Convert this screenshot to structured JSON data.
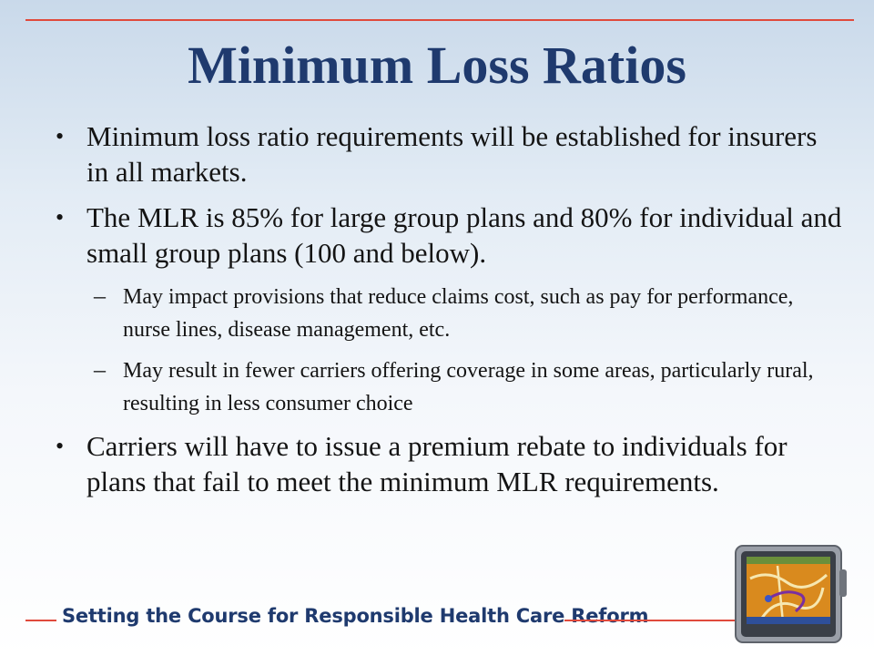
{
  "slide": {
    "title": "Minimum Loss Ratios",
    "bullets": [
      {
        "text": "Minimum loss ratio requirements will be established for insurers in all markets."
      },
      {
        "text": "The MLR is 85% for large group plans and 80% for individual and small group plans (100 and below).",
        "sub": [
          "May impact provisions that reduce claims cost, such as pay for performance, nurse lines, disease management, etc.",
          "May result in fewer carriers offering coverage in some areas, particularly rural, resulting in less consumer choice"
        ]
      },
      {
        "text": "Carriers will have to issue a premium rebate to individuals for plans that fail to meet the minimum MLR requirements."
      }
    ],
    "footer": "Setting the Course for Responsible Health Care Reform"
  },
  "colors": {
    "title": "#1f3a6e",
    "rule": "#e04a3c",
    "body_text": "#141414"
  },
  "icons": [
    "gps-device-icon"
  ]
}
